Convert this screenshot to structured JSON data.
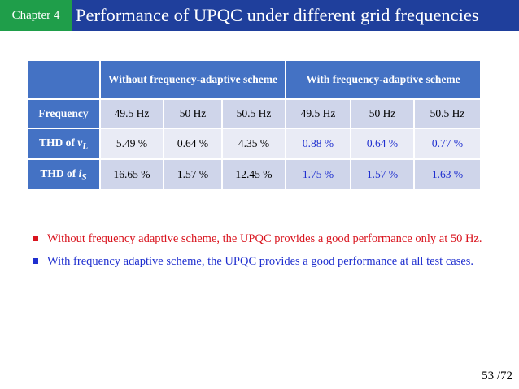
{
  "header": {
    "chapter": "Chapter 4",
    "title": "Performance of UPQC under different grid frequencies"
  },
  "table": {
    "group_headers": [
      "Without frequency-adaptive scheme",
      "With frequency-adaptive scheme"
    ],
    "row_freq_label": "Frequency",
    "frequencies": [
      "49.5 Hz",
      "50 Hz",
      "50.5 Hz",
      "49.5 Hz",
      "50 Hz",
      "50.5 Hz"
    ],
    "thd_vl": {
      "prefix": "THD of ",
      "var": "v",
      "sub": "L",
      "values": [
        "5.49 %",
        "0.64 %",
        "4.35 %",
        "0.88 %",
        "0.64 %",
        "0.77 %"
      ]
    },
    "thd_is": {
      "prefix": "THD of ",
      "var": "i",
      "sub": "S",
      "values": [
        "16.65 %",
        "1.57 %",
        "12.45 %",
        "1.75 %",
        "1.57 %",
        "1.63 %"
      ]
    }
  },
  "bullets": [
    "Without frequency adaptive scheme, the UPQC provides a good performance only at 50 Hz.",
    "With frequency adaptive scheme, the UPQC provides a good performance at all test cases."
  ],
  "page_number": "53 /72",
  "colors": {
    "chapter_bg": "#1f9e4a",
    "title_bg": "#1f3f9c",
    "table_header": "#4472c4",
    "red_text": "#d9141e",
    "blue_text": "#1f2fcf"
  }
}
